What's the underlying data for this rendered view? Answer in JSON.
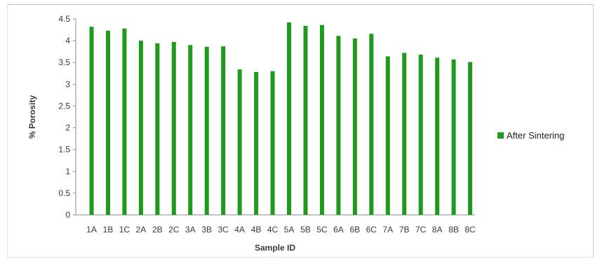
{
  "chart_data": {
    "type": "bar",
    "title": "",
    "xlabel": "Sample ID",
    "ylabel": "% Porosity",
    "ylim": [
      0,
      4.5
    ],
    "yticks": [
      "0",
      "0.5",
      "1",
      "1.5",
      "2",
      "2.5",
      "3",
      "3.5",
      "4",
      "4.5"
    ],
    "grid": false,
    "legend_position": "right",
    "categories": [
      "1A",
      "1B",
      "1C",
      "2A",
      "2B",
      "2C",
      "3A",
      "3B",
      "3C",
      "4A",
      "4B",
      "4C",
      "5A",
      "5B",
      "5C",
      "6A",
      "6B",
      "6C",
      "7A",
      "7B",
      "7C",
      "8A",
      "8B",
      "8C"
    ],
    "series": [
      {
        "name": "After Sintering",
        "color": "#1f9a1f",
        "values": [
          4.32,
          4.23,
          4.28,
          4.0,
          3.94,
          3.97,
          3.9,
          3.86,
          3.87,
          3.34,
          3.28,
          3.3,
          4.42,
          4.34,
          4.36,
          4.11,
          4.05,
          4.16,
          3.64,
          3.72,
          3.68,
          3.61,
          3.57,
          3.51
        ]
      }
    ]
  }
}
